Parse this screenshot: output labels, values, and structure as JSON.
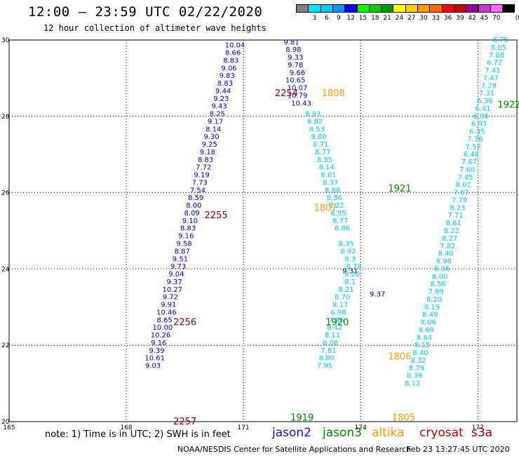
{
  "title": "12:00 – 23:59 UTC 02/22/2020",
  "subtitle": "12 hour collection of altimeter wave heights",
  "note": "note: 1) Time is in UTC; 2) SWH is in feet",
  "credit": "NOAA/NESDIS Center for Satellite Applications and Research",
  "timestamp": "Feb 23 13:27:45 UTC 2020",
  "legend": [
    {
      "name": "jason2",
      "color": "#1010d0"
    },
    {
      "name": "jason3",
      "color": "#008800"
    },
    {
      "name": "altika",
      "color": "#ff9900"
    },
    {
      "name": "cryosat",
      "color": "#cc0000"
    },
    {
      "name": "s3a",
      "color": "#990000"
    }
  ],
  "colorbar": {
    "unit": "(ft)",
    "bins": [
      {
        "label": "",
        "color": "#808080"
      },
      {
        "label": "3",
        "color": "#00e5ff"
      },
      {
        "label": "6",
        "color": "#00c8ff"
      },
      {
        "label": "9",
        "color": "#0096ff"
      },
      {
        "label": "12",
        "color": "#0000ff"
      },
      {
        "label": "15",
        "color": "#00ff00"
      },
      {
        "label": "18",
        "color": "#00cc00"
      },
      {
        "label": "21",
        "color": "#009900"
      },
      {
        "label": "24",
        "color": "#ffff00"
      },
      {
        "label": "27",
        "color": "#ffcc00"
      },
      {
        "label": "30",
        "color": "#ff9900"
      },
      {
        "label": "33",
        "color": "#ff6600"
      },
      {
        "label": "36",
        "color": "#ff0000"
      },
      {
        "label": "39",
        "color": "#cc0000"
      },
      {
        "label": "42",
        "color": "#990099"
      },
      {
        "label": "45",
        "color": "#cc33cc"
      },
      {
        "label": "70",
        "color": "#ff66ff"
      },
      {
        "label": "",
        "color": "#000000"
      }
    ]
  },
  "chart_data": {
    "type": "scatter",
    "xlim": [
      165,
      178
    ],
    "ylim": [
      20,
      30
    ],
    "xticks": [
      "165",
      "168",
      "171",
      "174",
      "177"
    ],
    "yticks": [
      "20",
      "22",
      "24",
      "26",
      "28",
      "30"
    ],
    "grid": true,
    "series": [
      {
        "name": "jason2",
        "pass_label": "",
        "color": "#0000cc",
        "points": [
          {
            "x": 172.23,
            "y": 29.94,
            "v": "9.81"
          },
          {
            "x": 172.28,
            "y": 29.74,
            "v": "8.98"
          },
          {
            "x": 172.33,
            "y": 29.54,
            "v": "9.33"
          },
          {
            "x": 172.33,
            "y": 29.34,
            "v": "9.78"
          },
          {
            "x": 172.38,
            "y": 29.14,
            "v": "9.66"
          },
          {
            "x": 172.33,
            "y": 28.94,
            "v": "10.65"
          },
          {
            "x": 172.38,
            "y": 28.74,
            "v": "10.07"
          },
          {
            "x": 172.38,
            "y": 28.54,
            "v": "10.79"
          },
          {
            "x": 172.48,
            "y": 28.34,
            "v": "10.43"
          },
          {
            "x": 173.73,
            "y": 23.94,
            "v": "9.31"
          },
          {
            "x": 174.43,
            "y": 23.34,
            "v": "9.37"
          }
        ]
      },
      {
        "name": "jason2_asc",
        "pass_label": "",
        "color": "#0000cc",
        "points": [
          {
            "x": 170.78,
            "y": 29.86,
            "v": "10.04"
          },
          {
            "x": 170.73,
            "y": 29.66,
            "v": "8.66"
          },
          {
            "x": 170.68,
            "y": 29.46,
            "v": "8.83"
          },
          {
            "x": 170.63,
            "y": 29.26,
            "v": "9.06"
          },
          {
            "x": 170.58,
            "y": 29.06,
            "v": "9.83"
          },
          {
            "x": 170.53,
            "y": 28.86,
            "v": "8.83"
          },
          {
            "x": 170.48,
            "y": 28.66,
            "v": "9.44"
          },
          {
            "x": 170.43,
            "y": 28.46,
            "v": "9.23"
          },
          {
            "x": 170.38,
            "y": 28.26,
            "v": "9.43"
          },
          {
            "x": 170.33,
            "y": 28.06,
            "v": "8.25"
          },
          {
            "x": 170.28,
            "y": 27.86,
            "v": "9.17"
          },
          {
            "x": 170.23,
            "y": 27.66,
            "v": "8.14"
          },
          {
            "x": 170.18,
            "y": 27.46,
            "v": "9.30"
          },
          {
            "x": 170.13,
            "y": 27.26,
            "v": "9.25"
          },
          {
            "x": 170.08,
            "y": 27.06,
            "v": "9.18"
          },
          {
            "x": 170.03,
            "y": 26.86,
            "v": "8.83"
          },
          {
            "x": 169.98,
            "y": 26.66,
            "v": "7.72"
          },
          {
            "x": 169.93,
            "y": 26.46,
            "v": "9.19"
          },
          {
            "x": 169.88,
            "y": 26.26,
            "v": "7.73"
          },
          {
            "x": 169.83,
            "y": 26.06,
            "v": "7.54"
          },
          {
            "x": 169.78,
            "y": 25.86,
            "v": "8.59"
          },
          {
            "x": 169.73,
            "y": 25.66,
            "v": "8.00"
          },
          {
            "x": 169.68,
            "y": 25.46,
            "v": "8.09"
          },
          {
            "x": 169.63,
            "y": 25.26,
            "v": "9.10"
          },
          {
            "x": 169.58,
            "y": 25.06,
            "v": "8.83"
          },
          {
            "x": 169.53,
            "y": 24.86,
            "v": "9.16"
          },
          {
            "x": 169.48,
            "y": 24.66,
            "v": "9.58"
          },
          {
            "x": 169.43,
            "y": 24.46,
            "v": "8.87"
          },
          {
            "x": 169.38,
            "y": 24.26,
            "v": "9.51"
          },
          {
            "x": 169.33,
            "y": 24.06,
            "v": "9.73"
          },
          {
            "x": 169.28,
            "y": 23.86,
            "v": "9.04"
          },
          {
            "x": 169.23,
            "y": 23.66,
            "v": "9.37"
          },
          {
            "x": 169.18,
            "y": 23.46,
            "v": "10.27"
          },
          {
            "x": 169.13,
            "y": 23.26,
            "v": "9.72"
          },
          {
            "x": 169.08,
            "y": 23.06,
            "v": "9.91"
          },
          {
            "x": 169.03,
            "y": 22.86,
            "v": "10.46"
          },
          {
            "x": 168.98,
            "y": 22.66,
            "v": "8.65"
          },
          {
            "x": 168.93,
            "y": 22.46,
            "v": "10.00"
          },
          {
            "x": 168.88,
            "y": 22.26,
            "v": "10.26"
          },
          {
            "x": 168.83,
            "y": 22.06,
            "v": "9.16"
          },
          {
            "x": 168.78,
            "y": 21.86,
            "v": "9.39"
          },
          {
            "x": 168.73,
            "y": 21.66,
            "v": "10.61"
          },
          {
            "x": 168.68,
            "y": 21.46,
            "v": "9.03"
          }
        ]
      },
      {
        "name": "jason3_desc",
        "pass_label": "",
        "color": "#00c8ff",
        "points": [
          {
            "x": 172.78,
            "y": 28.06,
            "v": "8.93"
          },
          {
            "x": 172.83,
            "y": 27.86,
            "v": "8.82"
          },
          {
            "x": 172.88,
            "y": 27.66,
            "v": "8.53"
          },
          {
            "x": 172.93,
            "y": 27.46,
            "v": "8.80"
          },
          {
            "x": 172.98,
            "y": 27.26,
            "v": "8.71"
          },
          {
            "x": 173.03,
            "y": 27.06,
            "v": "8.77"
          },
          {
            "x": 173.08,
            "y": 26.86,
            "v": "8.55"
          },
          {
            "x": 173.13,
            "y": 26.66,
            "v": "8.14"
          },
          {
            "x": 173.18,
            "y": 26.46,
            "v": "8.01"
          },
          {
            "x": 173.23,
            "y": 26.26,
            "v": "8.37"
          },
          {
            "x": 173.28,
            "y": 26.06,
            "v": "8.88"
          },
          {
            "x": 173.33,
            "y": 25.86,
            "v": "8.86"
          },
          {
            "x": 173.38,
            "y": 25.66,
            "v": "8.22"
          },
          {
            "x": 173.43,
            "y": 25.46,
            "v": "8.95"
          },
          {
            "x": 173.48,
            "y": 25.26,
            "v": "8.77"
          },
          {
            "x": 173.53,
            "y": 25.06,
            "v": "8.86"
          },
          {
            "x": 173.63,
            "y": 24.66,
            "v": "8.35"
          },
          {
            "x": 173.68,
            "y": 24.46,
            "v": "8.92"
          },
          {
            "x": 173.73,
            "y": 24.26,
            "v": "8.3"
          },
          {
            "x": 173.83,
            "y": 24.06,
            "v": "8.78"
          },
          {
            "x": 173.78,
            "y": 23.86,
            "v": "9.20"
          },
          {
            "x": 173.73,
            "y": 23.66,
            "v": "8.1"
          },
          {
            "x": 173.63,
            "y": 23.46,
            "v": "8.21"
          },
          {
            "x": 173.53,
            "y": 23.26,
            "v": "8.70"
          },
          {
            "x": 173.48,
            "y": 23.06,
            "v": "8.17"
          },
          {
            "x": 173.43,
            "y": 22.86,
            "v": "6.98"
          },
          {
            "x": 173.38,
            "y": 22.66,
            "v": "7.96"
          },
          {
            "x": 173.33,
            "y": 22.46,
            "v": "8.42"
          },
          {
            "x": 173.28,
            "y": 22.26,
            "v": "8.11"
          },
          {
            "x": 173.23,
            "y": 22.06,
            "v": "8.08"
          },
          {
            "x": 173.18,
            "y": 21.86,
            "v": "7.81"
          },
          {
            "x": 173.13,
            "y": 21.66,
            "v": "8.80"
          },
          {
            "x": 173.08,
            "y": 21.46,
            "v": "7.95"
          }
        ]
      },
      {
        "name": "jason3_asc",
        "pass_label": "",
        "color": "#00c8ff",
        "points": [
          {
            "x": 177.58,
            "y": 30.0,
            "v": "8.75"
          },
          {
            "x": 177.53,
            "y": 29.8,
            "v": "8.05"
          },
          {
            "x": 177.48,
            "y": 29.6,
            "v": "7.68"
          },
          {
            "x": 177.43,
            "y": 29.4,
            "v": "6.72"
          },
          {
            "x": 177.38,
            "y": 29.2,
            "v": "7.41"
          },
          {
            "x": 177.33,
            "y": 29.0,
            "v": "7.47"
          },
          {
            "x": 177.28,
            "y": 28.8,
            "v": "7.28"
          },
          {
            "x": 177.23,
            "y": 28.6,
            "v": "7.31"
          },
          {
            "x": 177.18,
            "y": 28.4,
            "v": "6.36"
          },
          {
            "x": 177.13,
            "y": 28.2,
            "v": "6.41"
          },
          {
            "x": 177.08,
            "y": 28.0,
            "v": "6.96"
          },
          {
            "x": 177.03,
            "y": 27.8,
            "v": "6.93"
          },
          {
            "x": 176.98,
            "y": 27.6,
            "v": "6.35"
          },
          {
            "x": 176.93,
            "y": 27.4,
            "v": "7.76"
          },
          {
            "x": 176.88,
            "y": 27.2,
            "v": "7.57"
          },
          {
            "x": 176.83,
            "y": 27.0,
            "v": "6.48"
          },
          {
            "x": 176.78,
            "y": 26.8,
            "v": "7.67"
          },
          {
            "x": 176.73,
            "y": 26.6,
            "v": "7.60"
          },
          {
            "x": 176.68,
            "y": 26.4,
            "v": "7.45"
          },
          {
            "x": 176.63,
            "y": 26.2,
            "v": "8.02"
          },
          {
            "x": 176.58,
            "y": 26.0,
            "v": "7.67"
          },
          {
            "x": 176.53,
            "y": 25.8,
            "v": "7.79"
          },
          {
            "x": 176.48,
            "y": 25.6,
            "v": "8.23"
          },
          {
            "x": 176.43,
            "y": 25.4,
            "v": "7.71"
          },
          {
            "x": 176.38,
            "y": 25.2,
            "v": "8.61"
          },
          {
            "x": 176.33,
            "y": 25.0,
            "v": "8.22"
          },
          {
            "x": 176.28,
            "y": 24.8,
            "v": "8.27"
          },
          {
            "x": 176.23,
            "y": 24.6,
            "v": "7.82"
          },
          {
            "x": 176.18,
            "y": 24.4,
            "v": "8.40"
          },
          {
            "x": 176.13,
            "y": 24.2,
            "v": "8.98"
          },
          {
            "x": 176.08,
            "y": 24.0,
            "v": "8.36"
          },
          {
            "x": 176.03,
            "y": 23.8,
            "v": "8.00"
          },
          {
            "x": 175.98,
            "y": 23.6,
            "v": "8.56"
          },
          {
            "x": 175.93,
            "y": 23.4,
            "v": "7.99"
          },
          {
            "x": 175.88,
            "y": 23.2,
            "v": "8.20"
          },
          {
            "x": 175.83,
            "y": 23.0,
            "v": "8.19"
          },
          {
            "x": 175.78,
            "y": 22.8,
            "v": "8.49"
          },
          {
            "x": 175.73,
            "y": 22.6,
            "v": "8.06"
          },
          {
            "x": 175.68,
            "y": 22.4,
            "v": "8.69"
          },
          {
            "x": 175.63,
            "y": 22.2,
            "v": "8.64"
          },
          {
            "x": 175.58,
            "y": 22.0,
            "v": "8.15"
          },
          {
            "x": 175.53,
            "y": 21.8,
            "v": "8.40"
          },
          {
            "x": 175.48,
            "y": 21.6,
            "v": "8.32"
          },
          {
            "x": 175.43,
            "y": 21.4,
            "v": "8.79"
          },
          {
            "x": 175.38,
            "y": 21.2,
            "v": "8.39"
          },
          {
            "x": 175.33,
            "y": 21.0,
            "v": "8.12"
          }
        ]
      }
    ],
    "pass_labels": [
      {
        "text": "2254",
        "color": "#990000",
        "x": 172.1,
        "y": 28.6
      },
      {
        "text": "1808",
        "color": "#ff9900",
        "x": 173.3,
        "y": 28.6
      },
      {
        "text": "1922",
        "color": "#008800",
        "x": 177.8,
        "y": 28.3
      },
      {
        "text": "1921",
        "color": "#008800",
        "x": 175.0,
        "y": 26.1
      },
      {
        "text": "2255",
        "color": "#990000",
        "x": 170.3,
        "y": 25.4
      },
      {
        "text": "1807",
        "color": "#ff9900",
        "x": 173.1,
        "y": 25.6
      },
      {
        "text": "1920",
        "color": "#008800",
        "x": 173.4,
        "y": 22.6
      },
      {
        "text": "1806",
        "color": "#ff9900",
        "x": 175.0,
        "y": 21.7
      },
      {
        "text": "2256",
        "color": "#990000",
        "x": 169.5,
        "y": 22.6
      },
      {
        "text": "1919",
        "color": "#008800",
        "x": 172.5,
        "y": 20.1
      },
      {
        "text": "1805",
        "color": "#ff9900",
        "x": 175.1,
        "y": 20.1
      },
      {
        "text": "2257",
        "color": "#990000",
        "x": 169.5,
        "y": 20.0
      }
    ]
  }
}
